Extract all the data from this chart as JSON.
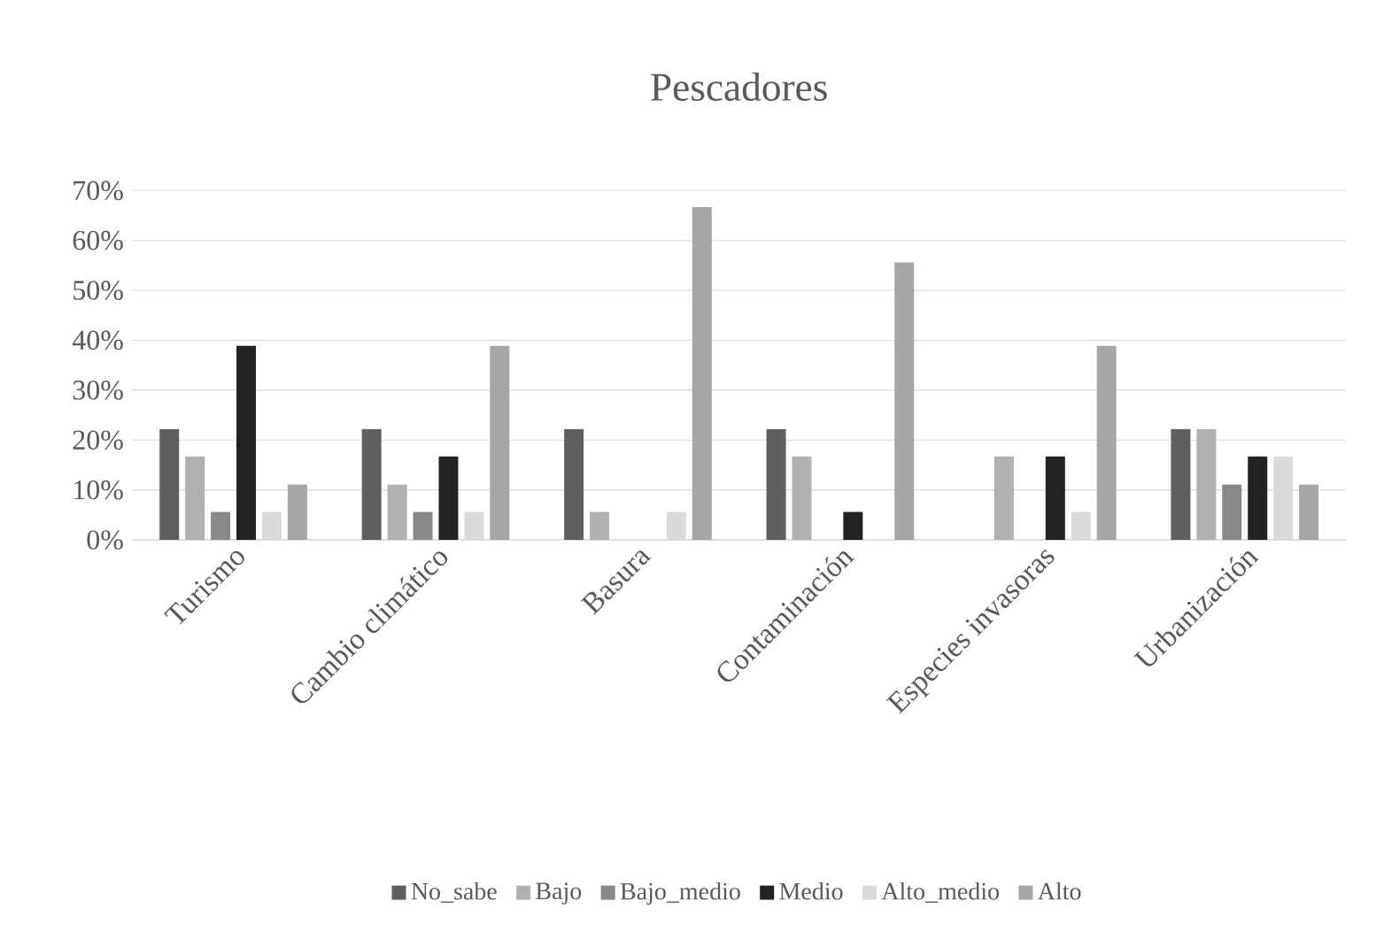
{
  "chart_data": {
    "type": "bar",
    "title": "Pescadores",
    "categories": [
      "Turismo",
      "Cambio climático",
      "Basura",
      "Contaminación",
      "Especies invasoras",
      "Urbanización"
    ],
    "series": [
      {
        "name": "No_sabe",
        "color": "#5f5f5f",
        "values": [
          22.2,
          22.2,
          22.2,
          22.2,
          0,
          22.2
        ]
      },
      {
        "name": "Bajo",
        "color": "#b0b0b0",
        "values": [
          16.7,
          11.1,
          5.6,
          16.7,
          16.7,
          22.2
        ]
      },
      {
        "name": "Bajo_medio",
        "color": "#888888",
        "values": [
          5.6,
          5.6,
          0,
          0,
          0,
          11.1
        ]
      },
      {
        "name": "Medio",
        "color": "#222222",
        "values": [
          38.9,
          16.7,
          0,
          5.6,
          16.7,
          16.7
        ]
      },
      {
        "name": "Alto_medio",
        "color": "#dadada",
        "values": [
          5.6,
          5.6,
          5.6,
          0,
          5.6,
          16.7
        ]
      },
      {
        "name": "Alto",
        "color": "#a6a6a6",
        "values": [
          11.1,
          38.9,
          66.7,
          55.6,
          38.9,
          11.1
        ]
      }
    ],
    "ylim": [
      0,
      70
    ],
    "yticks": [
      {
        "value": 0,
        "label": "0%"
      },
      {
        "value": 10,
        "label": "10%"
      },
      {
        "value": 20,
        "label": "20%"
      },
      {
        "value": 30,
        "label": "30%"
      },
      {
        "value": 40,
        "label": "40%"
      },
      {
        "value": 50,
        "label": "50%"
      },
      {
        "value": 60,
        "label": "60%"
      },
      {
        "value": 70,
        "label": "70%"
      }
    ],
    "grid": "y",
    "legend": "bottom"
  }
}
